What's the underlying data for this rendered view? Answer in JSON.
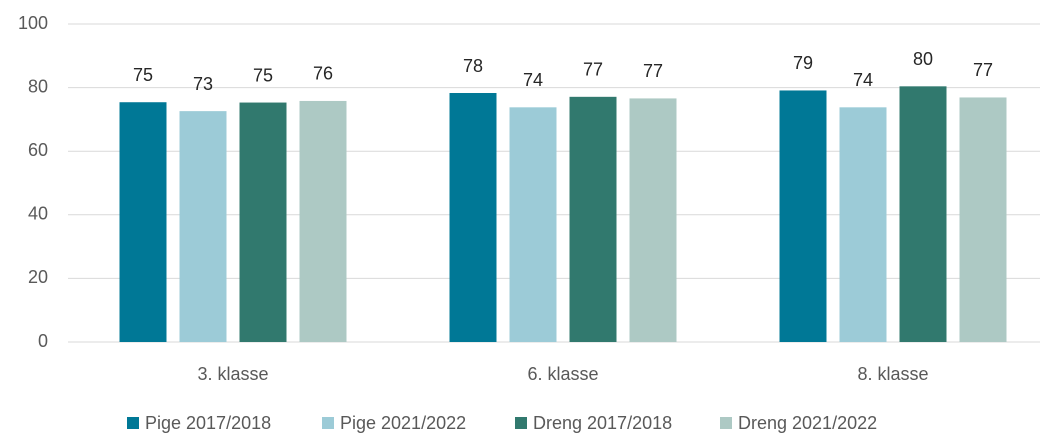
{
  "chart_data": {
    "type": "bar",
    "categories": [
      "3. klasse",
      "6. klasse",
      "8. klasse"
    ],
    "series": [
      {
        "name": "Pige 2017/2018",
        "color": "#007896",
        "values": [
          75.4,
          78.3,
          79.1
        ],
        "value_labels": [
          "75",
          "78",
          "79"
        ]
      },
      {
        "name": "Pige 2021/2022",
        "color": "#9ccbd7",
        "values": [
          72.6,
          73.8,
          73.8
        ],
        "value_labels": [
          "73",
          "74",
          "74"
        ]
      },
      {
        "name": "Dreng 2017/2018",
        "color": "#31796e",
        "values": [
          75.3,
          77.1,
          80.4
        ],
        "value_labels": [
          "75",
          "77",
          "80"
        ]
      },
      {
        "name": "Dreng 2021/2022",
        "color": "#adc9c4",
        "values": [
          75.8,
          76.6,
          76.9
        ],
        "value_labels": [
          "76",
          "77",
          "77"
        ]
      }
    ],
    "ylim": [
      0,
      100
    ],
    "yticks": [
      0,
      20,
      40,
      60,
      80,
      100
    ],
    "grid": true,
    "legend": "bottom"
  }
}
